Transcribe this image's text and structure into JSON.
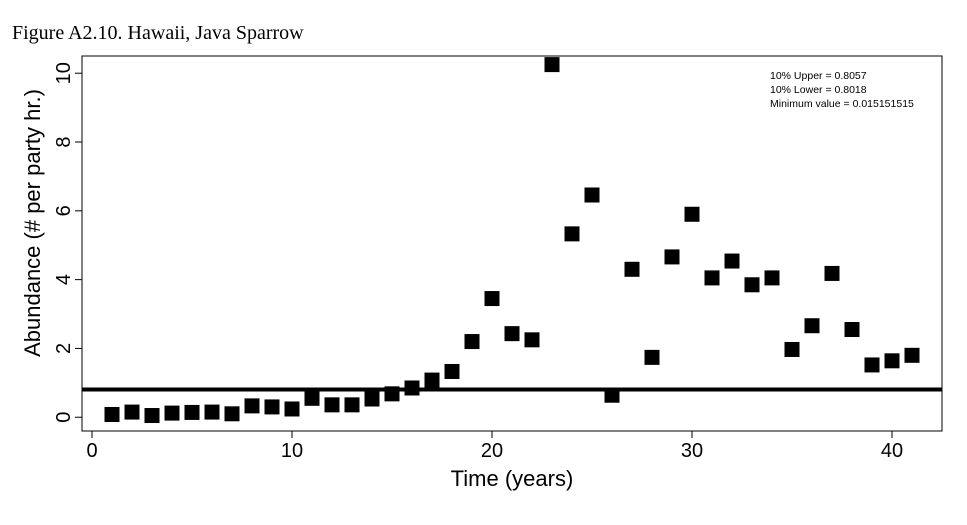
{
  "figure_title": "Figure A2.10. Hawaii, Java Sparrow",
  "chart_data": {
    "type": "scatter",
    "xlabel": "Time (years)",
    "ylabel": "Abundance (# per party hr.)",
    "xlim": [
      -0.5,
      42.5
    ],
    "ylim": [
      -0.4,
      10.5
    ],
    "xticks": [
      0,
      10,
      20,
      30,
      40
    ],
    "yticks": [
      0,
      2,
      4,
      6,
      8,
      10
    ],
    "grid": false,
    "marker": "square",
    "marker_color": "#000000",
    "reference_line": {
      "y": 0.8057,
      "color": "#000000"
    },
    "annotations": [
      "10% Upper =  0.8057",
      "10% Lower =  0.8018",
      "Minimum value =  0.015151515"
    ],
    "x": [
      1,
      2,
      3,
      4,
      5,
      6,
      7,
      8,
      9,
      10,
      11,
      12,
      13,
      14,
      15,
      16,
      17,
      18,
      19,
      20,
      21,
      22,
      23,
      24,
      25,
      26,
      27,
      28,
      29,
      30,
      31,
      32,
      33,
      34,
      35,
      36,
      37,
      38,
      39,
      40,
      41
    ],
    "y": [
      0.08,
      0.15,
      0.05,
      0.12,
      0.14,
      0.15,
      0.1,
      0.33,
      0.3,
      0.24,
      0.55,
      0.36,
      0.36,
      0.53,
      0.68,
      0.85,
      1.08,
      1.33,
      2.2,
      3.45,
      2.43,
      2.25,
      10.25,
      5.33,
      6.46,
      0.64,
      4.3,
      1.74,
      4.66,
      5.9,
      4.05,
      4.54,
      3.85,
      4.05,
      1.97,
      2.66,
      4.18,
      2.55,
      1.52,
      1.64,
      1.8
    ]
  }
}
